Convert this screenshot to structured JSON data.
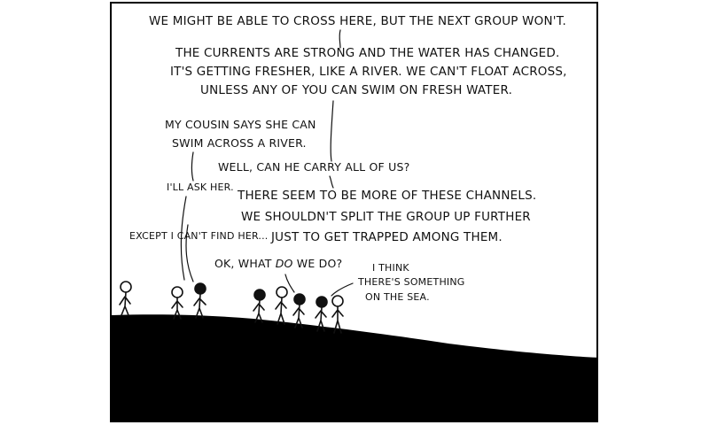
{
  "dialogue": {
    "line1": "WE MIGHT BE ABLE TO CROSS HERE, BUT THE NEXT GROUP WON'T.",
    "line2a": "THE CURRENTS ARE STRONG AND THE WATER HAS CHANGED.",
    "line2b": "IT'S GETTING FRESHER, LIKE A RIVER. WE CAN'T FLOAT ACROSS,",
    "line2c": "UNLESS ANY OF YOU CAN SWIM ON FRESH WATER.",
    "cousin1": "MY COUSIN SAYS SHE CAN",
    "cousin2": "SWIM ACROSS A RIVER.",
    "carry": "WELL, CAN HE CARRY ALL OF US?",
    "ask": "I'LL ASK HER.",
    "except": "EXCEPT I CAN'T FIND HER...",
    "channels1": "THERE SEEM TO BE MORE OF THESE CHANNELS.",
    "channels2": "WE SHOULDN'T SPLIT THE GROUP UP FURTHER",
    "channels3": "JUST TO GET TRAPPED AMONG THEM.",
    "ok_pre": "OK, WHAT ",
    "ok_em": "DO",
    "ok_post": " WE DO?",
    "think1": "I THINK",
    "think2": "THERE'S SOMETHING",
    "think3": "ON THE SEA."
  }
}
